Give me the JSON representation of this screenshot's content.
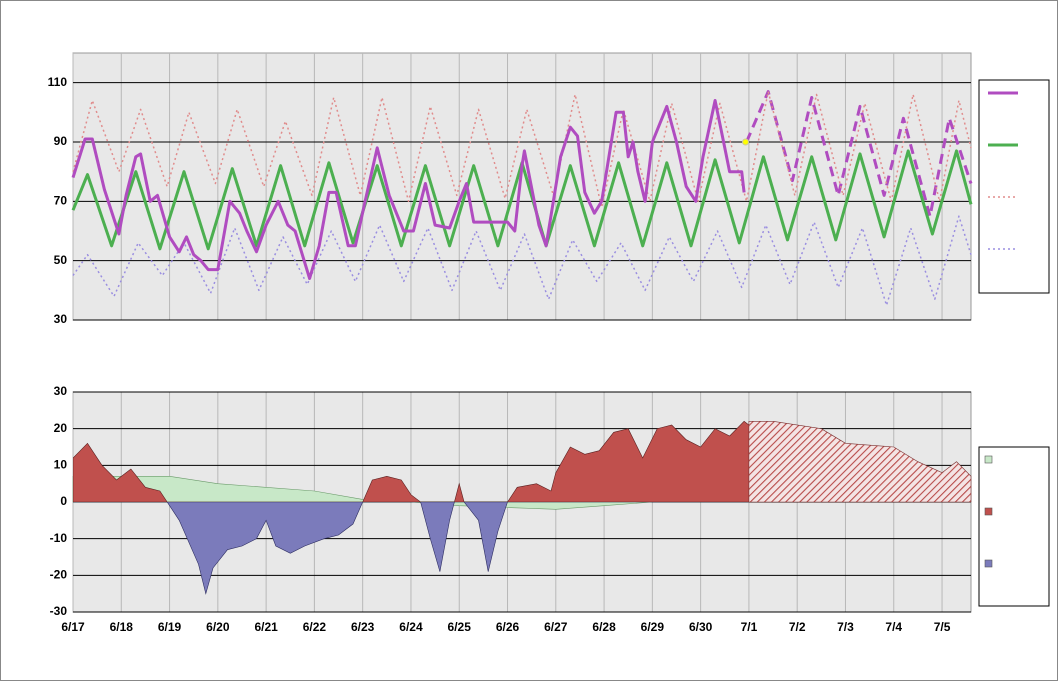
{
  "chart_data": [
    {
      "type": "line",
      "xlim": [
        0,
        18.6
      ],
      "ylim": [
        30,
        120
      ],
      "yticks": [
        30,
        50,
        70,
        90,
        110
      ],
      "grid": true,
      "legend": "right",
      "marker": {
        "x": 13.93,
        "y": 90,
        "color": "#ffff00"
      },
      "series": [
        {
          "color": "#b04cc0",
          "width": 3,
          "x": [
            0,
            0.25,
            0.4,
            0.65,
            0.95,
            1.1,
            1.3,
            1.4,
            1.6,
            1.75,
            2.0,
            2.2,
            2.35,
            2.5,
            2.65,
            2.8,
            3.0,
            3.25,
            3.45,
            3.6,
            3.8,
            4.0,
            4.25,
            4.45,
            4.6,
            4.9,
            5.1,
            5.3,
            5.45,
            5.7,
            5.85,
            6.05,
            6.3,
            6.55,
            6.85,
            7.05,
            7.3,
            7.5,
            7.8,
            8.0,
            8.15,
            8.3,
            9.0,
            9.15,
            9.3,
            9.35,
            9.65,
            9.8,
            10.1,
            10.3,
            10.45,
            10.6,
            10.8,
            10.95,
            11.25,
            11.4,
            11.5,
            11.6,
            11.7,
            11.85,
            12.0,
            12.3,
            12.5,
            12.7,
            12.9,
            13.05,
            13.3,
            13.5,
            13.6,
            13.85,
            13.9
          ],
          "values": [
            78,
            91,
            91,
            74,
            59,
            72,
            85,
            86,
            70,
            72,
            58,
            53,
            58,
            52,
            50,
            47,
            47,
            70,
            66,
            60,
            53,
            62,
            70,
            62,
            60,
            44,
            55,
            73,
            73,
            55,
            55,
            70,
            88,
            72,
            60,
            60,
            76,
            62,
            61,
            70,
            76,
            63,
            63,
            60,
            82,
            87,
            62,
            55,
            85,
            95,
            92,
            73,
            66,
            70,
            100,
            100,
            85,
            90,
            80,
            70,
            90,
            102,
            90,
            75,
            70,
            85,
            104,
            88,
            80,
            80,
            73
          ]
        },
        {
          "color": "#4caf50",
          "width": 3,
          "x": [
            0,
            0.3,
            0.8,
            1.3,
            1.8,
            2.3,
            2.8,
            3.3,
            3.8,
            4.3,
            4.8,
            5.3,
            5.8,
            6.3,
            6.8,
            7.3,
            7.8,
            8.3,
            8.8,
            9.3,
            9.8,
            10.3,
            10.8,
            11.3,
            11.8,
            12.3,
            12.8,
            13.3,
            13.8,
            14.3,
            14.8,
            15.3,
            15.8,
            16.3,
            16.8,
            17.3,
            17.8,
            18.3,
            18.6
          ],
          "values": [
            67,
            79,
            55,
            80,
            54,
            80,
            54,
            81,
            55,
            82,
            55,
            83,
            56,
            82,
            55,
            82,
            55,
            82,
            55,
            83,
            55,
            82,
            55,
            83,
            55,
            83,
            55,
            84,
            56,
            85,
            57,
            85,
            57,
            86,
            58,
            87,
            59,
            87,
            69
          ]
        },
        {
          "color": "#e08c8c",
          "width": 1.5,
          "dash": "dotted",
          "x": [
            0,
            0.4,
            0.95,
            1.4,
            1.95,
            2.4,
            2.95,
            3.4,
            3.95,
            4.4,
            4.95,
            5.4,
            5.95,
            6.4,
            6.95,
            7.4,
            7.95,
            8.4,
            8.95,
            9.4,
            9.95,
            10.4,
            10.95,
            11.4,
            11.95,
            12.4,
            12.95,
            13.4,
            13.95,
            14.4,
            14.95,
            15.4,
            15.95,
            16.4,
            16.95,
            17.4,
            17.95,
            18.35,
            18.6
          ],
          "values": [
            80,
            104,
            80,
            101,
            75,
            100,
            76,
            101,
            75,
            97,
            72,
            105,
            72,
            105,
            70,
            102,
            72,
            101,
            71,
            101,
            72,
            106,
            68,
            101,
            70,
            103,
            70,
            103,
            70,
            107,
            72,
            106,
            72,
            103,
            70,
            106,
            70,
            104,
            88
          ]
        },
        {
          "color": "#9a8ee0",
          "width": 1.5,
          "dash": "dotted",
          "x": [
            0,
            0.3,
            0.85,
            1.35,
            1.85,
            2.3,
            2.85,
            3.35,
            3.85,
            4.35,
            4.85,
            5.35,
            5.85,
            6.35,
            6.85,
            7.35,
            7.85,
            8.35,
            8.85,
            9.35,
            9.85,
            10.35,
            10.85,
            11.35,
            11.85,
            12.35,
            12.85,
            13.35,
            13.85,
            14.35,
            14.85,
            15.35,
            15.85,
            16.35,
            16.85,
            17.35,
            17.85,
            18.35,
            18.6
          ],
          "values": [
            45,
            52,
            38,
            56,
            45,
            56,
            39,
            61,
            40,
            58,
            42,
            60,
            43,
            62,
            43,
            61,
            40,
            60,
            40,
            59,
            37,
            57,
            43,
            56,
            40,
            58,
            43,
            60,
            41,
            62,
            42,
            63,
            41,
            61,
            35,
            61,
            37,
            65,
            52
          ]
        },
        {
          "color": "#b04cc0",
          "width": 3,
          "dash": "dashed",
          "in_legend": false,
          "x": [
            13.95,
            14.4,
            14.9,
            15.3,
            15.85,
            16.3,
            16.8,
            17.2,
            17.75,
            18.15,
            18.6
          ],
          "values": [
            90,
            107,
            77,
            105,
            72,
            102,
            72,
            98,
            65,
            98,
            76
          ]
        }
      ]
    },
    {
      "type": "area",
      "xlim": [
        0,
        18.6
      ],
      "ylim": [
        -30,
        30
      ],
      "yticks": [
        -30,
        -20,
        -10,
        0,
        10,
        20,
        30
      ],
      "grid": true,
      "legend": "right",
      "xticks": [
        {
          "value": 0,
          "label": "6/17"
        },
        {
          "value": 1,
          "label": "6/18"
        },
        {
          "value": 2,
          "label": "6/19"
        },
        {
          "value": 3,
          "label": "6/20"
        },
        {
          "value": 4,
          "label": "6/21"
        },
        {
          "value": 5,
          "label": "6/22"
        },
        {
          "value": 6,
          "label": "6/23"
        },
        {
          "value": 7,
          "label": "6/24"
        },
        {
          "value": 8,
          "label": "6/25"
        },
        {
          "value": 9,
          "label": "6/26"
        },
        {
          "value": 10,
          "label": "6/27"
        },
        {
          "value": 11,
          "label": "6/28"
        },
        {
          "value": 12,
          "label": "6/29"
        },
        {
          "value": 13,
          "label": "6/30"
        },
        {
          "value": 14,
          "label": "7/1"
        },
        {
          "value": 15,
          "label": "7/2"
        },
        {
          "value": 16,
          "label": "7/3"
        },
        {
          "value": 17,
          "label": "7/4"
        },
        {
          "value": 18,
          "label": "7/5"
        }
      ],
      "series": [
        {
          "color": "#c8e8c8",
          "x": [
            0,
            1.5,
            2,
            3,
            5,
            6,
            7,
            8,
            9,
            10,
            11,
            12,
            13,
            14
          ],
          "values": [
            7,
            7,
            7,
            5,
            3,
            0.7,
            0,
            -1,
            -1.5,
            -2,
            -1,
            0,
            1,
            2
          ]
        },
        {
          "color": "#c0504d",
          "neg_color": "#7b7bbb",
          "x": [
            0,
            0.3,
            0.6,
            0.9,
            1.2,
            1.5,
            1.8,
            2.0,
            2.2,
            2.6,
            2.75,
            2.9,
            3.2,
            3.5,
            3.8,
            4.0,
            4.2,
            4.5,
            4.8,
            5.2,
            5.5,
            5.8,
            6.0,
            6.2,
            6.5,
            6.8,
            7.0,
            7.2,
            7.4,
            7.6,
            7.8,
            8.0,
            8.1,
            8.4,
            8.6,
            8.8,
            9.0,
            9.2,
            9.6,
            9.9,
            10.0,
            10.3,
            10.6,
            10.9,
            11.2,
            11.5,
            11.8,
            12.1,
            12.4,
            12.7,
            13.0,
            13.3,
            13.6,
            13.9,
            14.0
          ],
          "values": [
            12,
            16,
            10,
            6,
            9,
            4,
            3,
            -1,
            -5,
            -17,
            -25,
            -18,
            -13,
            -12,
            -10,
            -5,
            -12,
            -14,
            -12,
            -10,
            -9,
            -6,
            0,
            6,
            7,
            6,
            2,
            0,
            -10,
            -19,
            -5,
            5,
            0,
            -5,
            -19,
            -8,
            0,
            4,
            5,
            3,
            8,
            15,
            13,
            14,
            19,
            20,
            12,
            20,
            21,
            17,
            15,
            20,
            18,
            22,
            21
          ]
        },
        {
          "color": "#c0504d",
          "pattern": "hatch",
          "in_legend": false,
          "x": [
            14,
            14.5,
            15.5,
            16,
            17,
            17.5,
            18,
            18.3,
            18.6
          ],
          "values": [
            22,
            22,
            20,
            16,
            15,
            11,
            8,
            11,
            7
          ]
        }
      ]
    }
  ]
}
